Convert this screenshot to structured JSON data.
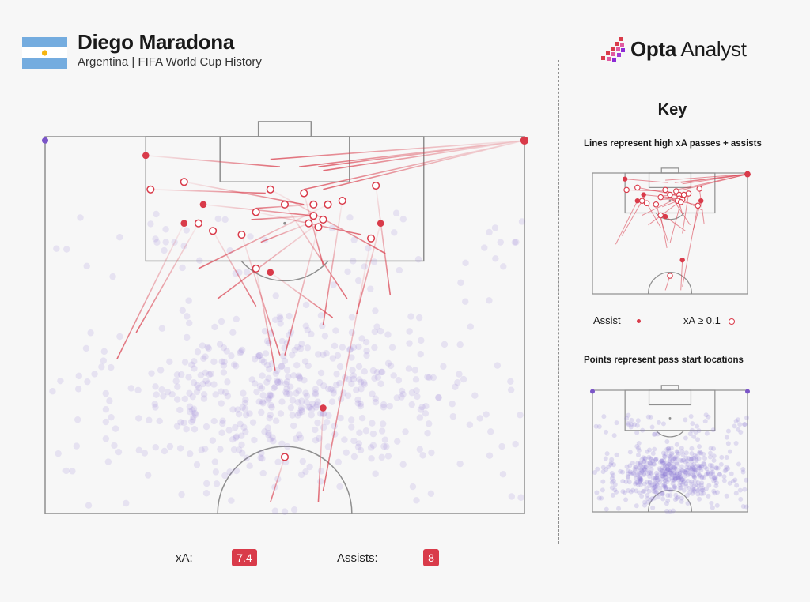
{
  "header": {
    "title": "Diego Maradona",
    "subtitle": "Argentina | FIFA World Cup History"
  },
  "brand": {
    "name_bold": "Opta",
    "name_rest": " Analyst"
  },
  "key": {
    "title": "Key",
    "lines_caption": "Lines represent high xA passes + assists",
    "points_caption": "Points represent pass start locations",
    "assist_label": "Assist",
    "xa_label": "xA ≥ 0.1"
  },
  "stats": {
    "xa_label": "xA:",
    "xa_value": "7.4",
    "assists_label": "Assists:",
    "assists_value": "8"
  },
  "colors": {
    "assist": "#d93b4a",
    "pass_point": "#8f79d6",
    "pitch_line": "#8f8f8f",
    "flag_blue": "#74acdf",
    "flag_sun": "#f6b40e"
  },
  "icons": {
    "flag": "argentina-flag-icon",
    "logo": "opta-pixel-logo-icon"
  },
  "chart_data": {
    "type": "scatter",
    "coordinate_note": "x: 0-100 across pitch width (left to right), y: 0-100 from top goal line down to bottom edge of shown area",
    "key_passes": [
      {
        "x0": 100,
        "y0": 1,
        "x1": 47,
        "y1": 6,
        "kind": "xa"
      },
      {
        "x0": 100,
        "y0": 1,
        "x1": 53,
        "y1": 8,
        "kind": "assist"
      },
      {
        "x0": 100,
        "y0": 1,
        "x1": 58,
        "y1": 9,
        "kind": "assist"
      },
      {
        "x0": 100,
        "y0": 1,
        "x1": 57,
        "y1": 8,
        "kind": "xa"
      },
      {
        "x0": 100,
        "y0": 1,
        "x1": 54,
        "y1": 14,
        "kind": "xa"
      },
      {
        "x0": 100,
        "y0": 1,
        "x1": 58,
        "y1": 14,
        "kind": "assist"
      },
      {
        "x0": 21,
        "y0": 5,
        "x1": 49,
        "y1": 8,
        "kind": "assist"
      },
      {
        "x0": 22,
        "y0": 14,
        "x1": 46,
        "y1": 15,
        "kind": "xa"
      },
      {
        "x0": 29,
        "y0": 12,
        "x1": 54,
        "y1": 18,
        "kind": "xa"
      },
      {
        "x0": 33,
        "y0": 18,
        "x1": 56,
        "y1": 21,
        "kind": "assist"
      },
      {
        "x0": 47,
        "y0": 14,
        "x1": 71,
        "y1": 31,
        "kind": "xa"
      },
      {
        "x0": 44,
        "y0": 20,
        "x1": 66,
        "y1": 26,
        "kind": "xa"
      },
      {
        "x0": 50,
        "y0": 18,
        "x1": 63,
        "y1": 43,
        "kind": "xa"
      },
      {
        "x0": 54,
        "y0": 15,
        "x1": 58,
        "y1": 34,
        "kind": "xa"
      },
      {
        "x0": 56,
        "y0": 18,
        "x1": 44,
        "y1": 19,
        "kind": "xa"
      },
      {
        "x0": 56,
        "y0": 21,
        "x1": 43,
        "y1": 22,
        "kind": "xa"
      },
      {
        "x0": 59,
        "y0": 18,
        "x1": 32,
        "y1": 35,
        "kind": "xa"
      },
      {
        "x0": 58,
        "y0": 22,
        "x1": 36,
        "y1": 43,
        "kind": "xa"
      },
      {
        "x0": 55,
        "y0": 23,
        "x1": 45,
        "y1": 28,
        "kind": "xa"
      },
      {
        "x0": 62,
        "y0": 17,
        "x1": 58,
        "y1": 50,
        "kind": "xa"
      },
      {
        "x0": 57,
        "y0": 24,
        "x1": 50,
        "y1": 58,
        "kind": "xa"
      },
      {
        "x0": 69,
        "y0": 13,
        "x1": 72,
        "y1": 42,
        "kind": "xa"
      },
      {
        "x0": 70,
        "y0": 23,
        "x1": 65,
        "y1": 47,
        "kind": "assist"
      },
      {
        "x0": 29,
        "y0": 23,
        "x1": 15,
        "y1": 59,
        "kind": "assist"
      },
      {
        "x0": 32,
        "y0": 23,
        "x1": 19,
        "y1": 52,
        "kind": "xa"
      },
      {
        "x0": 35,
        "y0": 25,
        "x1": 44,
        "y1": 45,
        "kind": "xa"
      },
      {
        "x0": 41,
        "y0": 26,
        "x1": 49,
        "y1": 58,
        "kind": "xa"
      },
      {
        "x0": 44,
        "y0": 35,
        "x1": 48,
        "y1": 62,
        "kind": "xa"
      },
      {
        "x0": 47,
        "y0": 36,
        "x1": 60,
        "y1": 48,
        "kind": "assist"
      },
      {
        "x0": 68,
        "y0": 27,
        "x1": 58,
        "y1": 94,
        "kind": "xa"
      },
      {
        "x0": 58,
        "y0": 72,
        "x1": 57,
        "y1": 97,
        "kind": "assist"
      },
      {
        "x0": 50,
        "y0": 85,
        "x1": 47,
        "y1": 97,
        "kind": "xa"
      }
    ],
    "series": [
      {
        "name": "Assist",
        "marker": "filled-dot"
      },
      {
        "name": "xA ≥ 0.1",
        "marker": "open-ring"
      }
    ],
    "pass_start_points": "approximately 600 faint purple points scattered across the midfield and attacking half",
    "totals": {
      "xa": 7.4,
      "assists": 8
    }
  }
}
